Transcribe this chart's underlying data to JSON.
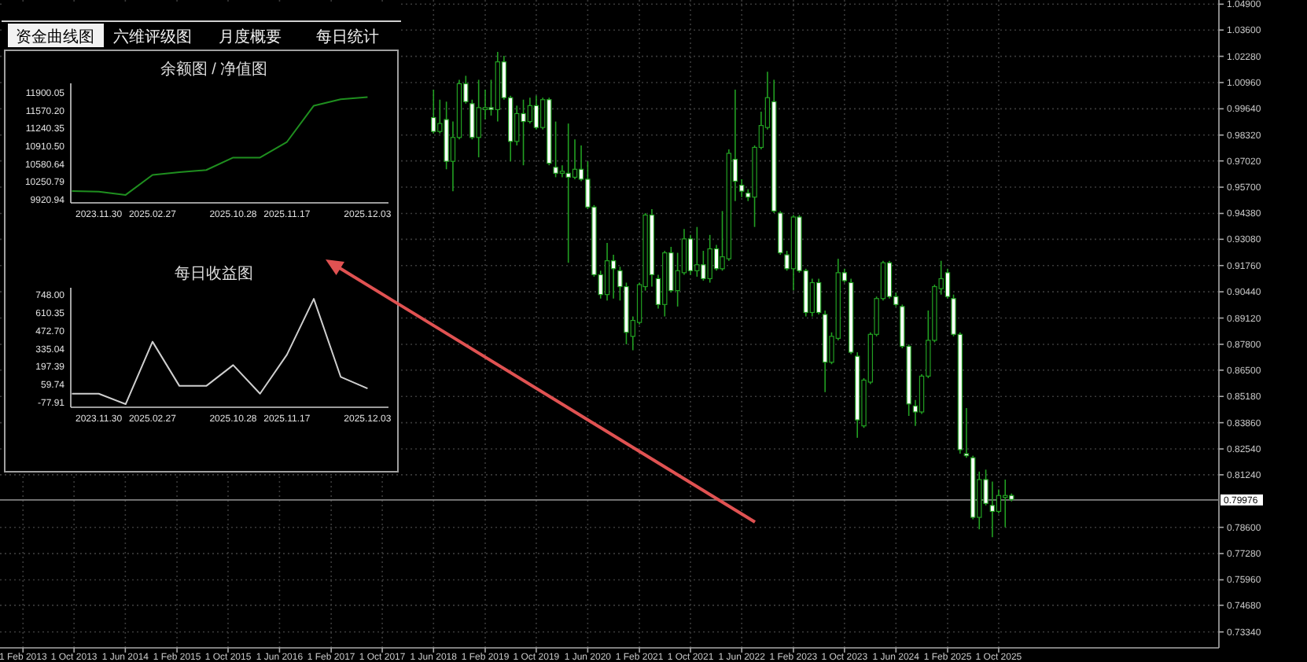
{
  "chart_data": [
    {
      "type": "candlestick",
      "color": "#22a022",
      "grid": true,
      "xlim": [
        "2012-10-15",
        "2028-08-10"
      ],
      "xticks": [
        {
          "value": "2013-02-01",
          "label": "1 Feb 2013"
        },
        {
          "value": "2013-10-01",
          "label": "1 Oct 2013"
        },
        {
          "value": "2014-06-01",
          "label": "1 Jun 2014"
        },
        {
          "value": "2015-02-01",
          "label": "1 Feb 2015"
        },
        {
          "value": "2015-10-01",
          "label": "1 Oct 2015"
        },
        {
          "value": "2016-06-01",
          "label": "1 Jun 2016"
        },
        {
          "value": "2017-02-01",
          "label": "1 Feb 2017"
        },
        {
          "value": "2017-10-01",
          "label": "1 Oct 2017"
        },
        {
          "value": "2018-06-01",
          "label": "1 Jun 2018"
        },
        {
          "value": "2019-02-01",
          "label": "1 Feb 2019"
        },
        {
          "value": "2019-10-01",
          "label": "1 Oct 2019"
        },
        {
          "value": "2020-06-01",
          "label": "1 Jun 2020"
        },
        {
          "value": "2021-02-01",
          "label": "1 Feb 2021"
        },
        {
          "value": "2021-10-01",
          "label": "1 Oct 2021"
        },
        {
          "value": "2022-06-01",
          "label": "1 Jun 2022"
        },
        {
          "value": "2023-02-01",
          "label": "1 Feb 2023"
        },
        {
          "value": "2023-10-01",
          "label": "1 Oct 2023"
        },
        {
          "value": "2024-06-01",
          "label": "1 Jun 2024"
        },
        {
          "value": "2025-02-01",
          "label": "1 Feb 2025"
        },
        {
          "value": "2025-10-01",
          "label": "1 Oct 2025"
        }
      ],
      "ylim": [
        0.7254,
        1.0511
      ],
      "yticks": [
        {
          "value": 1.049,
          "label": "1.04900"
        },
        {
          "value": 1.036,
          "label": "1.03600"
        },
        {
          "value": 1.0228,
          "label": "1.02280"
        },
        {
          "value": 1.0096,
          "label": "1.00960"
        },
        {
          "value": 0.9964,
          "label": "0.99640"
        },
        {
          "value": 0.9832,
          "label": "0.98320"
        },
        {
          "value": 0.9702,
          "label": "0.97020"
        },
        {
          "value": 0.957,
          "label": "0.95700"
        },
        {
          "value": 0.9438,
          "label": "0.94380"
        },
        {
          "value": 0.9308,
          "label": "0.93080"
        },
        {
          "value": 0.9176,
          "label": "0.91760"
        },
        {
          "value": 0.9044,
          "label": "0.90440"
        },
        {
          "value": 0.8912,
          "label": "0.89120"
        },
        {
          "value": 0.878,
          "label": "0.87800"
        },
        {
          "value": 0.865,
          "label": "0.86500"
        },
        {
          "value": 0.8518,
          "label": "0.85180"
        },
        {
          "value": 0.8386,
          "label": "0.83860"
        },
        {
          "value": 0.8254,
          "label": "0.82540"
        },
        {
          "value": 0.8124,
          "label": "0.81240"
        },
        {
          "value": 0.786,
          "label": "0.78600"
        },
        {
          "value": 0.7728,
          "label": "0.77280"
        },
        {
          "value": 0.7596,
          "label": "0.75960"
        },
        {
          "value": 0.7468,
          "label": "0.74680"
        },
        {
          "value": 0.7334,
          "label": "0.73340"
        }
      ],
      "ref_lines": [
        {
          "axis": "y",
          "value": 0.79976,
          "label": "0.79976",
          "color": "#808080"
        }
      ],
      "x": [
        "2018-06",
        "2018-07",
        "2018-08",
        "2018-09",
        "2018-10",
        "2018-11",
        "2018-12",
        "2019-01",
        "2019-02",
        "2019-03",
        "2019-04",
        "2019-05",
        "2019-06",
        "2019-07",
        "2019-08",
        "2019-09",
        "2019-10",
        "2019-11",
        "2019-12",
        "2020-01",
        "2020-02",
        "2020-03",
        "2020-04",
        "2020-05",
        "2020-06",
        "2020-07",
        "2020-08",
        "2020-09",
        "2020-10",
        "2020-11",
        "2020-12",
        "2021-01",
        "2021-02",
        "2021-03",
        "2021-04",
        "2021-05",
        "2021-06",
        "2021-07",
        "2021-08",
        "2021-09",
        "2021-10",
        "2021-11",
        "2021-12",
        "2022-01",
        "2022-02",
        "2022-03",
        "2022-04",
        "2022-05",
        "2022-06",
        "2022-07",
        "2022-08",
        "2022-09",
        "2022-10",
        "2022-11",
        "2022-12",
        "2023-01",
        "2023-02",
        "2023-03",
        "2023-04",
        "2023-05",
        "2023-06",
        "2023-07",
        "2023-08",
        "2023-09",
        "2023-10",
        "2023-11",
        "2023-12",
        "2024-01",
        "2024-02",
        "2024-03",
        "2024-04",
        "2024-05",
        "2024-06",
        "2024-07",
        "2024-08",
        "2024-09",
        "2024-10",
        "2024-11",
        "2024-12",
        "2025-01",
        "2025-02",
        "2025-03",
        "2025-04",
        "2025-05",
        "2025-06",
        "2025-07",
        "2025-08",
        "2025-09",
        "2025-10",
        "2025-11",
        "2025-12"
      ],
      "ohlc": [
        [
          0.992,
          1.006,
          0.984,
          0.985
        ],
        [
          0.985,
          1.001,
          0.984,
          0.989
        ],
        [
          0.991,
          1.0,
          0.966,
          0.97
        ],
        [
          0.97,
          0.99,
          0.955,
          0.982
        ],
        [
          0.982,
          1.011,
          0.981,
          1.009
        ],
        [
          1.009,
          1.013,
          0.999,
          1.0
        ],
        [
          0.999,
          1.001,
          0.981,
          0.982
        ],
        [
          0.982,
          1.011,
          0.972,
          0.997
        ],
        [
          0.996,
          1.006,
          0.991,
          0.997
        ],
        [
          0.997,
          1.011,
          0.993,
          0.996
        ],
        [
          0.996,
          1.025,
          0.99,
          1.02
        ],
        [
          1.02,
          1.023,
          1.001,
          1.002
        ],
        [
          1.002,
          1.003,
          0.97,
          0.98
        ],
        [
          0.98,
          0.998,
          0.978,
          0.994
        ],
        [
          0.994,
          1.001,
          0.968,
          0.99
        ],
        [
          0.99,
          1.002,
          0.989,
          0.998
        ],
        [
          0.998,
          1.003,
          0.986,
          0.987
        ],
        [
          0.987,
          1.002,
          0.986,
          1.001
        ],
        [
          1.001,
          1.002,
          0.968,
          0.969
        ],
        [
          0.967,
          0.99,
          0.962,
          0.964
        ],
        [
          0.964,
          0.968,
          0.962,
          0.965
        ],
        [
          0.964,
          0.989,
          0.919,
          0.962
        ],
        [
          0.962,
          0.981,
          0.961,
          0.966
        ],
        [
          0.966,
          0.978,
          0.96,
          0.961
        ],
        [
          0.961,
          0.97,
          0.946,
          0.947
        ],
        [
          0.947,
          0.948,
          0.912,
          0.913
        ],
        [
          0.913,
          0.915,
          0.901,
          0.903
        ],
        [
          0.903,
          0.929,
          0.9,
          0.92
        ],
        [
          0.92,
          0.923,
          0.901,
          0.916
        ],
        [
          0.915,
          0.917,
          0.9,
          0.907
        ],
        [
          0.907,
          0.909,
          0.878,
          0.884
        ],
        [
          0.882,
          0.892,
          0.875,
          0.89
        ],
        [
          0.889,
          0.909,
          0.888,
          0.908
        ],
        [
          0.907,
          0.944,
          0.905,
          0.943
        ],
        [
          0.943,
          0.946,
          0.907,
          0.913
        ],
        [
          0.911,
          0.913,
          0.896,
          0.898
        ],
        [
          0.898,
          0.925,
          0.892,
          0.924
        ],
        [
          0.924,
          0.927,
          0.904,
          0.905
        ],
        [
          0.905,
          0.924,
          0.897,
          0.915
        ],
        [
          0.914,
          0.936,
          0.913,
          0.931
        ],
        [
          0.931,
          0.933,
          0.913,
          0.915
        ],
        [
          0.915,
          0.937,
          0.912,
          0.918
        ],
        [
          0.918,
          0.925,
          0.91,
          0.911
        ],
        [
          0.911,
          0.933,
          0.909,
          0.926
        ],
        [
          0.926,
          0.928,
          0.915,
          0.916
        ],
        [
          0.916,
          0.945,
          0.915,
          0.922
        ],
        [
          0.921,
          0.976,
          0.92,
          0.974
        ],
        [
          0.971,
          1.006,
          0.95,
          0.96
        ],
        [
          0.958,
          0.961,
          0.952,
          0.955
        ],
        [
          0.954,
          0.956,
          0.95,
          0.952
        ],
        [
          0.952,
          0.978,
          0.937,
          0.977
        ],
        [
          0.977,
          0.995,
          0.976,
          0.988
        ],
        [
          0.987,
          1.015,
          0.986,
          1.002
        ],
        [
          1.0,
          1.011,
          0.944,
          0.945
        ],
        [
          0.944,
          0.945,
          0.923,
          0.924
        ],
        [
          0.923,
          0.925,
          0.915,
          0.916
        ],
        [
          0.916,
          0.943,
          0.905,
          0.942
        ],
        [
          0.942,
          0.943,
          0.914,
          0.915
        ],
        [
          0.915,
          0.916,
          0.892,
          0.894
        ],
        [
          0.894,
          0.911,
          0.892,
          0.909
        ],
        [
          0.909,
          0.911,
          0.893,
          0.894
        ],
        [
          0.893,
          0.895,
          0.854,
          0.869
        ],
        [
          0.869,
          0.884,
          0.868,
          0.882
        ],
        [
          0.881,
          0.921,
          0.88,
          0.914
        ],
        [
          0.914,
          0.916,
          0.909,
          0.91
        ],
        [
          0.909,
          0.911,
          0.873,
          0.874
        ],
        [
          0.872,
          0.874,
          0.831,
          0.84
        ],
        [
          0.837,
          0.861,
          0.836,
          0.86
        ],
        [
          0.859,
          0.884,
          0.858,
          0.883
        ],
        [
          0.883,
          0.902,
          0.882,
          0.901
        ],
        [
          0.901,
          0.92,
          0.9,
          0.919
        ],
        [
          0.919,
          0.92,
          0.901,
          0.902
        ],
        [
          0.902,
          0.904,
          0.897,
          0.898
        ],
        [
          0.897,
          0.898,
          0.876,
          0.877
        ],
        [
          0.877,
          0.878,
          0.842,
          0.848
        ],
        [
          0.847,
          0.85,
          0.837,
          0.844
        ],
        [
          0.844,
          0.863,
          0.843,
          0.862
        ],
        [
          0.862,
          0.895,
          0.861,
          0.88
        ],
        [
          0.88,
          0.908,
          0.879,
          0.907
        ],
        [
          0.906,
          0.92,
          0.903,
          0.911
        ],
        [
          0.914,
          0.916,
          0.901,
          0.902
        ],
        [
          0.901,
          0.903,
          0.882,
          0.883
        ],
        [
          0.883,
          0.884,
          0.823,
          0.825
        ],
        [
          0.823,
          0.846,
          0.821,
          0.822
        ],
        [
          0.821,
          0.822,
          0.79,
          0.791
        ],
        [
          0.791,
          0.814,
          0.785,
          0.81
        ],
        [
          0.81,
          0.815,
          0.797,
          0.798
        ],
        [
          0.797,
          0.809,
          0.781,
          0.794
        ],
        [
          0.794,
          0.805,
          0.793,
          0.802
        ],
        [
          0.801,
          0.81,
          0.786,
          0.802
        ],
        [
          0.802,
          0.803,
          0.799,
          0.8
        ]
      ]
    },
    {
      "type": "other",
      "annotations": [
        "资金曲线图",
        "六维评级图",
        "月度概要",
        "每日统计"
      ]
    },
    {
      "type": "line",
      "title": "余额图 / 净值图",
      "color": "#1f8f1f",
      "categories": [
        null,
        "2023.11.30",
        null,
        "2025.02.27",
        null,
        null,
        "2025.10.28",
        null,
        "2025.11.17",
        null,
        null,
        "2025.12.03"
      ],
      "values": [
        10080,
        10070,
        10010,
        10380,
        10430,
        10470,
        10700,
        10700,
        10990,
        11660,
        11780,
        11820
      ],
      "ylim": [
        9863,
        12074
      ],
      "yticks": [
        11900.05,
        {
          "value": 11570.2,
          "label": "11570.20"
        },
        11240.35,
        {
          "value": 10910.5,
          "label": "10910.50"
        },
        10580.64,
        10250.79,
        9920.94
      ]
    },
    {
      "type": "line",
      "title": "每日收益图",
      "color": "#cfcfcf",
      "categories": [
        null,
        "2023.11.30",
        null,
        "2025.02.27",
        null,
        null,
        "2025.10.28",
        null,
        "2025.11.17",
        null,
        null,
        "2025.12.03"
      ],
      "values": [
        -10,
        -10,
        -90,
        390,
        50,
        50,
        210,
        -10,
        290,
        720,
        120,
        30
      ],
      "ylim": [
        -114,
        805
      ],
      "yticks": [
        {
          "value": 748,
          "label": "748.00"
        },
        {
          "value": 610.35,
          "label": "610.35"
        },
        {
          "value": 472.7,
          "label": "472.70"
        },
        {
          "value": 335.04,
          "label": "335.04"
        },
        {
          "value": 197.39,
          "label": "197.39"
        },
        {
          "value": 59.74,
          "label": "59.74"
        },
        {
          "value": -77.91,
          "label": "-77.91"
        }
      ]
    }
  ]
}
